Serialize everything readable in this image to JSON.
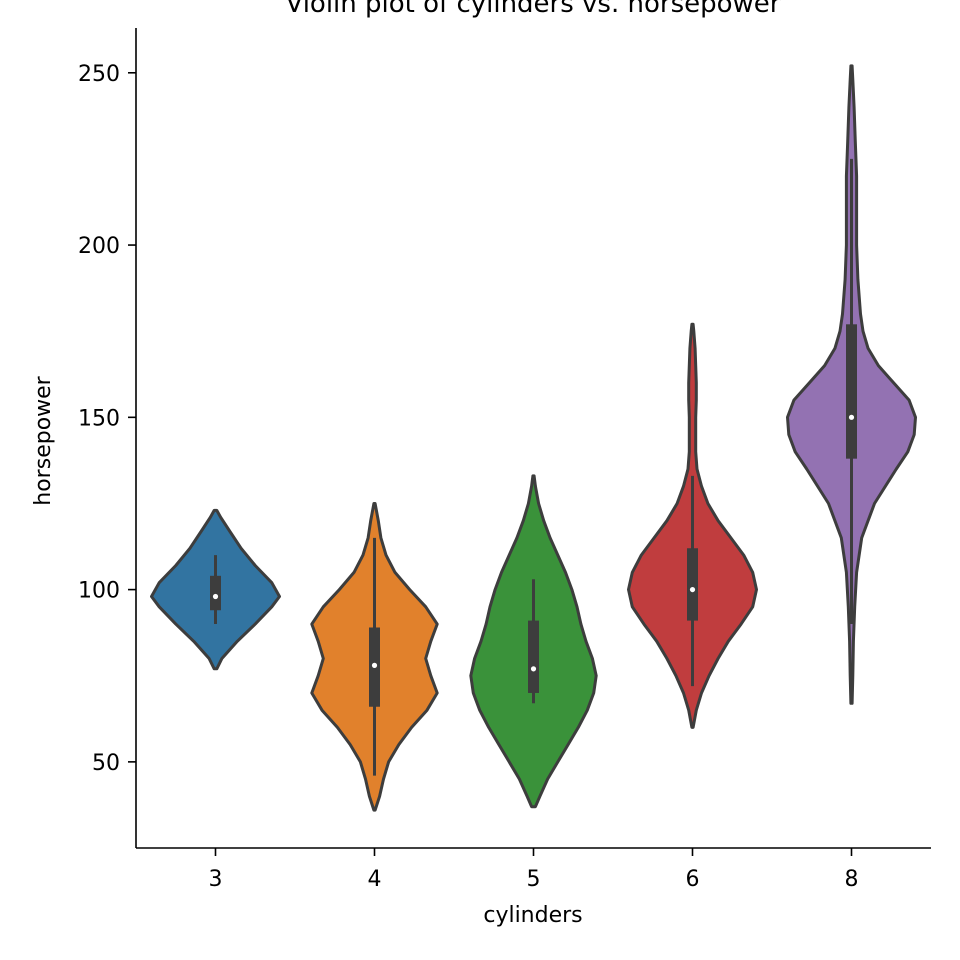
{
  "chart_data": {
    "type": "violin",
    "title": "Violin plot of cylinders vs. horsepower",
    "xlabel": "cylinders",
    "ylabel": "horsepower",
    "categories": [
      "3",
      "4",
      "5",
      "6",
      "8"
    ],
    "ylim": [
      25,
      263
    ],
    "yticks": [
      50,
      100,
      150,
      200,
      250
    ],
    "grid": false,
    "violins": [
      {
        "category": "3",
        "color": "#3274a1",
        "min": 90,
        "q1": 94,
        "median": 98,
        "q3": 104,
        "max": 110,
        "kde_min": 77,
        "kde_max": 123,
        "profile": [
          [
            77,
            0.02
          ],
          [
            80,
            0.1
          ],
          [
            85,
            0.34
          ],
          [
            90,
            0.62
          ],
          [
            95,
            0.88
          ],
          [
            98,
            1.0
          ],
          [
            102,
            0.88
          ],
          [
            107,
            0.62
          ],
          [
            112,
            0.4
          ],
          [
            117,
            0.22
          ],
          [
            121,
            0.08
          ],
          [
            123,
            0.02
          ]
        ]
      },
      {
        "category": "4",
        "color": "#e1812c",
        "min": 46,
        "q1": 66,
        "median": 78,
        "q3": 89,
        "max": 115,
        "kde_min": 36,
        "kde_max": 125,
        "profile": [
          [
            36,
            0.01
          ],
          [
            40,
            0.08
          ],
          [
            45,
            0.14
          ],
          [
            50,
            0.22
          ],
          [
            55,
            0.38
          ],
          [
            60,
            0.58
          ],
          [
            65,
            0.82
          ],
          [
            70,
            0.98
          ],
          [
            75,
            0.88
          ],
          [
            80,
            0.8
          ],
          [
            85,
            0.88
          ],
          [
            90,
            0.98
          ],
          [
            95,
            0.8
          ],
          [
            100,
            0.55
          ],
          [
            105,
            0.32
          ],
          [
            110,
            0.18
          ],
          [
            115,
            0.1
          ],
          [
            120,
            0.06
          ],
          [
            125,
            0.01
          ]
        ]
      },
      {
        "category": "5",
        "color": "#3a923a",
        "min": 67,
        "q1": 70,
        "median": 77,
        "q3": 91,
        "max": 103,
        "kde_min": 37,
        "kde_max": 133,
        "profile": [
          [
            37,
            0.03
          ],
          [
            40,
            0.1
          ],
          [
            45,
            0.22
          ],
          [
            50,
            0.38
          ],
          [
            55,
            0.54
          ],
          [
            60,
            0.7
          ],
          [
            65,
            0.84
          ],
          [
            70,
            0.94
          ],
          [
            75,
            0.98
          ],
          [
            80,
            0.92
          ],
          [
            85,
            0.82
          ],
          [
            90,
            0.74
          ],
          [
            95,
            0.68
          ],
          [
            100,
            0.6
          ],
          [
            105,
            0.5
          ],
          [
            110,
            0.38
          ],
          [
            115,
            0.26
          ],
          [
            120,
            0.16
          ],
          [
            125,
            0.08
          ],
          [
            130,
            0.03
          ],
          [
            133,
            0.01
          ]
        ]
      },
      {
        "category": "6",
        "color": "#c03d3e",
        "min": 72,
        "q1": 91,
        "median": 100,
        "q3": 112,
        "max": 133,
        "kde_min": 60,
        "kde_max": 177,
        "profile": [
          [
            60,
            0.01
          ],
          [
            65,
            0.06
          ],
          [
            70,
            0.14
          ],
          [
            75,
            0.26
          ],
          [
            80,
            0.4
          ],
          [
            85,
            0.56
          ],
          [
            90,
            0.76
          ],
          [
            95,
            0.94
          ],
          [
            100,
            1.0
          ],
          [
            105,
            0.94
          ],
          [
            110,
            0.8
          ],
          [
            115,
            0.6
          ],
          [
            120,
            0.4
          ],
          [
            125,
            0.24
          ],
          [
            130,
            0.14
          ],
          [
            135,
            0.07
          ],
          [
            140,
            0.05
          ],
          [
            145,
            0.05
          ],
          [
            150,
            0.05
          ],
          [
            155,
            0.06
          ],
          [
            160,
            0.06
          ],
          [
            165,
            0.05
          ],
          [
            170,
            0.04
          ],
          [
            175,
            0.02
          ],
          [
            177,
            0.01
          ]
        ]
      },
      {
        "category": "8",
        "color": "#9372b2",
        "min": 90,
        "q1": 138,
        "median": 150,
        "q3": 177,
        "max": 225,
        "kde_min": 67,
        "kde_max": 252,
        "profile": [
          [
            67,
            0.01
          ],
          [
            75,
            0.02
          ],
          [
            85,
            0.03
          ],
          [
            95,
            0.05
          ],
          [
            105,
            0.08
          ],
          [
            115,
            0.16
          ],
          [
            125,
            0.36
          ],
          [
            135,
            0.7
          ],
          [
            140,
            0.88
          ],
          [
            145,
            0.98
          ],
          [
            150,
            1.0
          ],
          [
            155,
            0.9
          ],
          [
            160,
            0.66
          ],
          [
            165,
            0.42
          ],
          [
            170,
            0.26
          ],
          [
            175,
            0.18
          ],
          [
            180,
            0.14
          ],
          [
            190,
            0.1
          ],
          [
            200,
            0.08
          ],
          [
            210,
            0.08
          ],
          [
            220,
            0.08
          ],
          [
            230,
            0.06
          ],
          [
            240,
            0.04
          ],
          [
            248,
            0.02
          ],
          [
            252,
            0.01
          ]
        ]
      }
    ]
  }
}
